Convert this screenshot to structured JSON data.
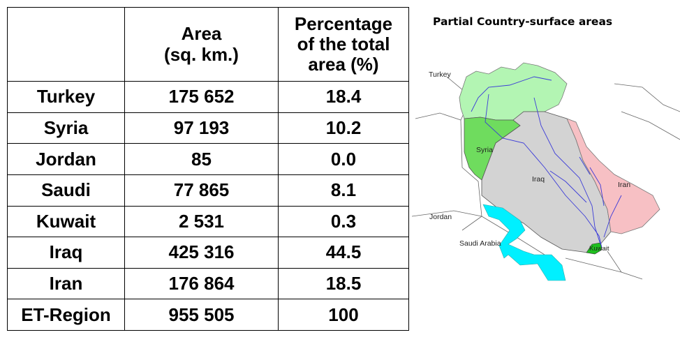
{
  "table": {
    "headers": [
      "",
      "Area\n(sq. km.)",
      "Percentage\nof the total\narea (%)"
    ],
    "rows": [
      {
        "country": "Turkey",
        "area": "175 652",
        "percent": "18.4"
      },
      {
        "country": "Syria",
        "area": "97 193",
        "percent": "10.2"
      },
      {
        "country": "Jordan",
        "area": "85",
        "percent": "0.0"
      },
      {
        "country": "Saudi",
        "area": "77 865",
        "percent": "8.1"
      },
      {
        "country": "Kuwait",
        "area": "2 531",
        "percent": "0.3"
      },
      {
        "country": "Iraq",
        "area": "425 316",
        "percent": "44.5"
      },
      {
        "country": "Iran",
        "area": "176 864",
        "percent": "18.5"
      },
      {
        "country": "ET-Region",
        "area": "955 505",
        "percent": "100"
      }
    ]
  },
  "map": {
    "title": "Partial Country-surface areas",
    "labels": {
      "turkey": "Turkey",
      "syria": "Syria",
      "iraq": "Iraq",
      "iran": "Iran",
      "jordan": "Jordan",
      "saudi": "Saudi Arabia",
      "kuwait": "Kuwait"
    },
    "colors": {
      "turkey": "#b3f5b3",
      "syria": "#6fdc5e",
      "iraq": "#d3d3d3",
      "iran": "#f7c0c4",
      "saudi": "#00f0ff",
      "kuwait": "#1fbf1f",
      "rivers": "#3a3ad8",
      "borders": "#555555"
    }
  }
}
